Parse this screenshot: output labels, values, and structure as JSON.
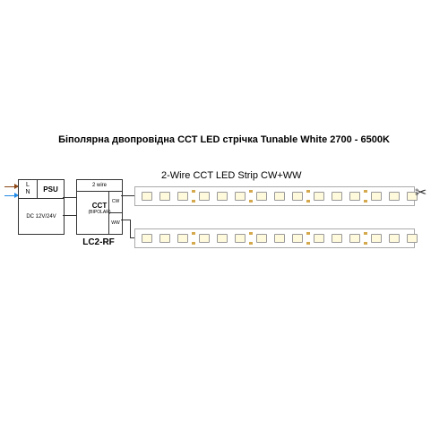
{
  "title": "Біполярна двопровідна ССТ LED стрічка Tunable White 2700 - 6500K",
  "psu": {
    "l": "L",
    "n": "N",
    "label": "PSU",
    "spec": "DC 12V/24V"
  },
  "controller": {
    "top": "2 wire",
    "main": "CCT",
    "sub": "(BIPOLAR)",
    "out1": "CW",
    "out2": "WW",
    "model": "LC2-RF"
  },
  "strip": {
    "label": "2-Wire CCT LED Strip CW+WW",
    "led_count_per_segment": 3,
    "segments_per_strip": 5,
    "led_color": "#fffadc",
    "pad_color": "#d4a94e",
    "border_color": "#aaaaaa"
  },
  "colors": {
    "line_brown": "#8b4513",
    "line_blue": "#1e88e5",
    "wire": "#333333",
    "bg": "#ffffff"
  },
  "scissors_glyph": "✂"
}
